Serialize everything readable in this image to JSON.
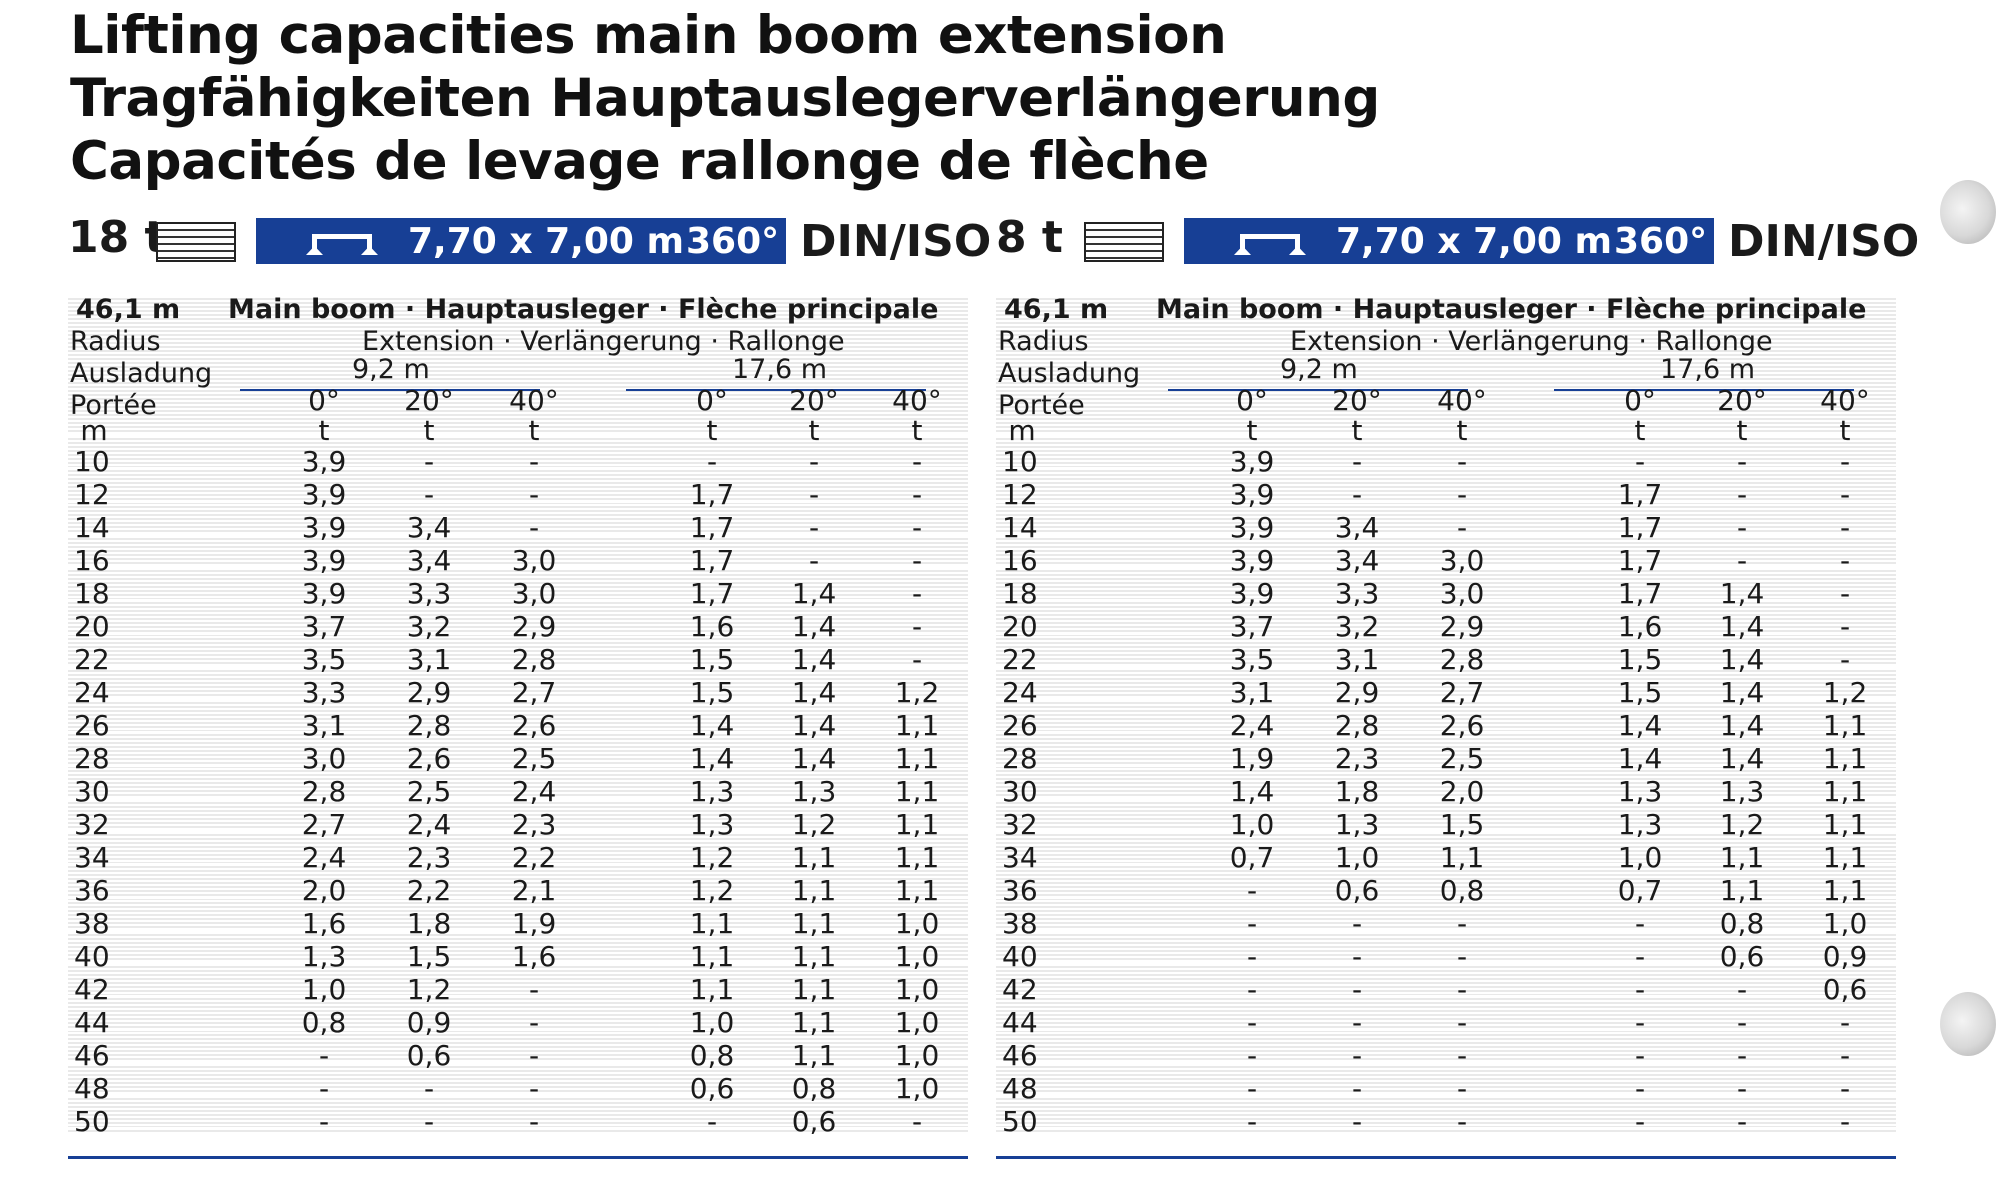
{
  "titles": [
    "Lifting capacities main boom extension",
    "Tragfähigkeiten Hauptauslegerverlängerung",
    "Capacités de levage rallonge de flèche"
  ],
  "icons": [
    "counterweight-layers-icon",
    "outrigger-icon"
  ],
  "colors": {
    "accent_blue": "#173f95",
    "stripe": "#e9e9e9",
    "text": "#1a1a1a"
  },
  "tables": [
    {
      "counterweight": "18 t",
      "outrigger": "7,70 x 7,00 m",
      "slewing": "360°",
      "norm": "DIN/ISO",
      "boom_length": "46,1 m",
      "boom_label": "Main boom · Hauptausleger · Flèche principale",
      "radius_labels": [
        "Radius",
        "Ausladung",
        "Portée"
      ],
      "extension_label": "Extension · Verlängerung · Rallonge",
      "extensions": [
        "9,2 m",
        "17,6 m"
      ],
      "angles": [
        "0°",
        "20°",
        "40°",
        "0°",
        "20°",
        "40°"
      ],
      "unit_radius": "m",
      "unit_capacity": "t",
      "rows": [
        {
          "r": "10",
          "v": [
            "3,9",
            "-",
            "-",
            "-",
            "-",
            "-"
          ]
        },
        {
          "r": "12",
          "v": [
            "3,9",
            "-",
            "-",
            "1,7",
            "-",
            "-"
          ]
        },
        {
          "r": "14",
          "v": [
            "3,9",
            "3,4",
            "-",
            "1,7",
            "-",
            "-"
          ]
        },
        {
          "r": "16",
          "v": [
            "3,9",
            "3,4",
            "3,0",
            "1,7",
            "-",
            "-"
          ]
        },
        {
          "r": "18",
          "v": [
            "3,9",
            "3,3",
            "3,0",
            "1,7",
            "1,4",
            "-"
          ]
        },
        {
          "r": "20",
          "v": [
            "3,7",
            "3,2",
            "2,9",
            "1,6",
            "1,4",
            "-"
          ]
        },
        {
          "r": "22",
          "v": [
            "3,5",
            "3,1",
            "2,8",
            "1,5",
            "1,4",
            "-"
          ]
        },
        {
          "r": "24",
          "v": [
            "3,3",
            "2,9",
            "2,7",
            "1,5",
            "1,4",
            "1,2"
          ]
        },
        {
          "r": "26",
          "v": [
            "3,1",
            "2,8",
            "2,6",
            "1,4",
            "1,4",
            "1,1"
          ]
        },
        {
          "r": "28",
          "v": [
            "3,0",
            "2,6",
            "2,5",
            "1,4",
            "1,4",
            "1,1"
          ]
        },
        {
          "r": "30",
          "v": [
            "2,8",
            "2,5",
            "2,4",
            "1,3",
            "1,3",
            "1,1"
          ]
        },
        {
          "r": "32",
          "v": [
            "2,7",
            "2,4",
            "2,3",
            "1,3",
            "1,2",
            "1,1"
          ]
        },
        {
          "r": "34",
          "v": [
            "2,4",
            "2,3",
            "2,2",
            "1,2",
            "1,1",
            "1,1"
          ]
        },
        {
          "r": "36",
          "v": [
            "2,0",
            "2,2",
            "2,1",
            "1,2",
            "1,1",
            "1,1"
          ]
        },
        {
          "r": "38",
          "v": [
            "1,6",
            "1,8",
            "1,9",
            "1,1",
            "1,1",
            "1,0"
          ]
        },
        {
          "r": "40",
          "v": [
            "1,3",
            "1,5",
            "1,6",
            "1,1",
            "1,1",
            "1,0"
          ]
        },
        {
          "r": "42",
          "v": [
            "1,0",
            "1,2",
            "-",
            "1,1",
            "1,1",
            "1,0"
          ]
        },
        {
          "r": "44",
          "v": [
            "0,8",
            "0,9",
            "-",
            "1,0",
            "1,1",
            "1,0"
          ]
        },
        {
          "r": "46",
          "v": [
            "-",
            "0,6",
            "-",
            "0,8",
            "1,1",
            "1,0"
          ]
        },
        {
          "r": "48",
          "v": [
            "-",
            "-",
            "-",
            "0,6",
            "0,8",
            "1,0"
          ]
        },
        {
          "r": "50",
          "v": [
            "-",
            "-",
            "-",
            "-",
            "0,6",
            "-"
          ]
        }
      ]
    },
    {
      "counterweight": "8 t",
      "outrigger": "7,70 x 7,00 m",
      "slewing": "360°",
      "norm": "DIN/ISO",
      "boom_length": "46,1 m",
      "boom_label": "Main boom · Hauptausleger · Flèche principale",
      "radius_labels": [
        "Radius",
        "Ausladung",
        "Portée"
      ],
      "extension_label": "Extension · Verlängerung · Rallonge",
      "extensions": [
        "9,2 m",
        "17,6 m"
      ],
      "angles": [
        "0°",
        "20°",
        "40°",
        "0°",
        "20°",
        "40°"
      ],
      "unit_radius": "m",
      "unit_capacity": "t",
      "rows": [
        {
          "r": "10",
          "v": [
            "3,9",
            "-",
            "-",
            "-",
            "-",
            "-"
          ]
        },
        {
          "r": "12",
          "v": [
            "3,9",
            "-",
            "-",
            "1,7",
            "-",
            "-"
          ]
        },
        {
          "r": "14",
          "v": [
            "3,9",
            "3,4",
            "-",
            "1,7",
            "-",
            "-"
          ]
        },
        {
          "r": "16",
          "v": [
            "3,9",
            "3,4",
            "3,0",
            "1,7",
            "-",
            "-"
          ]
        },
        {
          "r": "18",
          "v": [
            "3,9",
            "3,3",
            "3,0",
            "1,7",
            "1,4",
            "-"
          ]
        },
        {
          "r": "20",
          "v": [
            "3,7",
            "3,2",
            "2,9",
            "1,6",
            "1,4",
            "-"
          ]
        },
        {
          "r": "22",
          "v": [
            "3,5",
            "3,1",
            "2,8",
            "1,5",
            "1,4",
            "-"
          ]
        },
        {
          "r": "24",
          "v": [
            "3,1",
            "2,9",
            "2,7",
            "1,5",
            "1,4",
            "1,2"
          ]
        },
        {
          "r": "26",
          "v": [
            "2,4",
            "2,8",
            "2,6",
            "1,4",
            "1,4",
            "1,1"
          ]
        },
        {
          "r": "28",
          "v": [
            "1,9",
            "2,3",
            "2,5",
            "1,4",
            "1,4",
            "1,1"
          ]
        },
        {
          "r": "30",
          "v": [
            "1,4",
            "1,8",
            "2,0",
            "1,3",
            "1,3",
            "1,1"
          ]
        },
        {
          "r": "32",
          "v": [
            "1,0",
            "1,3",
            "1,5",
            "1,3",
            "1,2",
            "1,1"
          ]
        },
        {
          "r": "34",
          "v": [
            "0,7",
            "1,0",
            "1,1",
            "1,0",
            "1,1",
            "1,1"
          ]
        },
        {
          "r": "36",
          "v": [
            "-",
            "0,6",
            "0,8",
            "0,7",
            "1,1",
            "1,1"
          ]
        },
        {
          "r": "38",
          "v": [
            "-",
            "-",
            "-",
            "-",
            "0,8",
            "1,0"
          ]
        },
        {
          "r": "40",
          "v": [
            "-",
            "-",
            "-",
            "-",
            "0,6",
            "0,9"
          ]
        },
        {
          "r": "42",
          "v": [
            "-",
            "-",
            "-",
            "-",
            "-",
            "0,6"
          ]
        },
        {
          "r": "44",
          "v": [
            "-",
            "-",
            "-",
            "-",
            "-",
            "-"
          ]
        },
        {
          "r": "46",
          "v": [
            "-",
            "-",
            "-",
            "-",
            "-",
            "-"
          ]
        },
        {
          "r": "48",
          "v": [
            "-",
            "-",
            "-",
            "-",
            "-",
            "-"
          ]
        },
        {
          "r": "50",
          "v": [
            "-",
            "-",
            "-",
            "-",
            "-",
            "-"
          ]
        }
      ]
    }
  ]
}
